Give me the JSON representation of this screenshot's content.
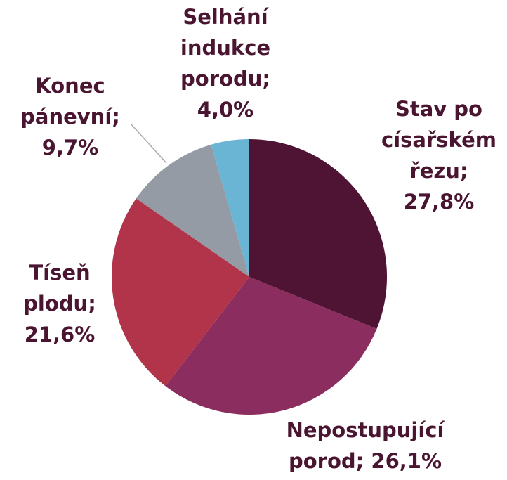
{
  "chart_data": {
    "type": "pie",
    "categories": [
      "Stav po císařském řezu",
      "Nepostupující porod",
      "Tíseň plodu",
      "Konec pánevní",
      "Selhání indukce porodu"
    ],
    "values": [
      27.8,
      26.1,
      21.6,
      9.7,
      4.0
    ],
    "value_labels": [
      "27,8%",
      "26,1%",
      "21,6%",
      "9,7%",
      "4,0%"
    ],
    "label_separator": ";",
    "colors": [
      "#4f1434",
      "#8b2e5f",
      "#b2344a",
      "#959ba5",
      "#6ab4d4"
    ]
  }
}
